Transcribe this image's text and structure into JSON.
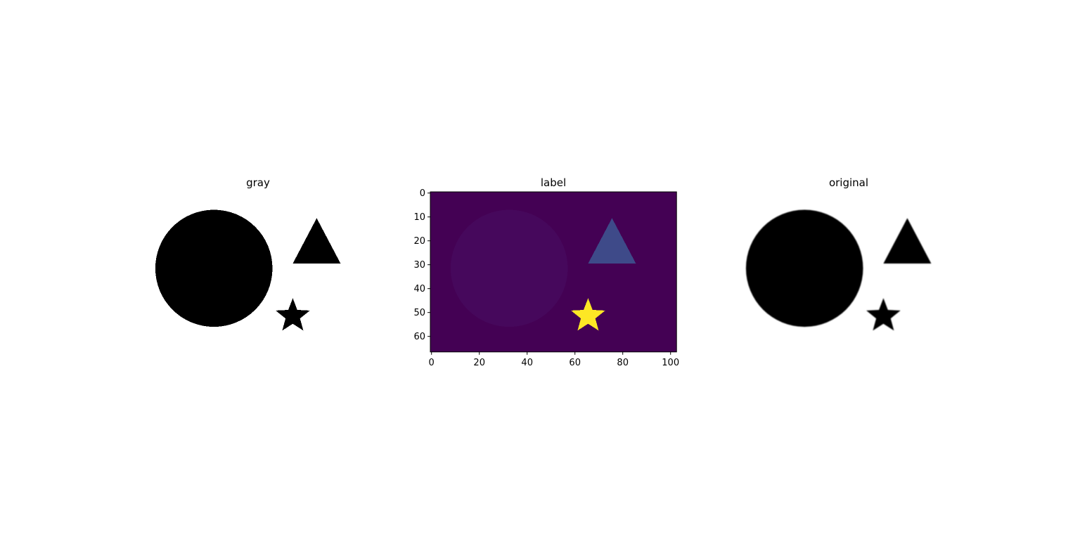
{
  "chart_data": [
    {
      "type": "image",
      "title": "gray",
      "axes_visible": false,
      "colormap": "gray",
      "shapes": [
        {
          "name": "circle",
          "center": [
            33,
            32
          ],
          "radius": 24.5,
          "value": "black"
        },
        {
          "name": "triangle",
          "apex": [
            76,
            11
          ],
          "base_y": 30,
          "base_x": [
            66,
            86
          ],
          "value": "black"
        },
        {
          "name": "star",
          "center": [
            66,
            52
          ],
          "outer_radius": 7.5,
          "inner_radius": 3.2,
          "value": "black"
        }
      ]
    },
    {
      "type": "heatmap",
      "title": "label",
      "axes_visible": true,
      "colormap": "viridis",
      "xlim": [
        -0.5,
        102.5
      ],
      "ylim": [
        66.5,
        -0.5
      ],
      "xticks": [
        "0",
        "20",
        "40",
        "60",
        "80",
        "100"
      ],
      "xtick_values": [
        0,
        20,
        40,
        60,
        80,
        100
      ],
      "yticks": [
        "0",
        "10",
        "20",
        "30",
        "40",
        "50",
        "60"
      ],
      "ytick_values": [
        0,
        10,
        20,
        30,
        40,
        50,
        60
      ],
      "regions": [
        {
          "name": "background",
          "label": 0,
          "color": "#440154"
        },
        {
          "name": "circle",
          "label": 1,
          "color": "#46085c"
        },
        {
          "name": "triangle",
          "label": 2,
          "color": "#3e4a89"
        },
        {
          "name": "star",
          "label": 3,
          "color": "#fde725"
        }
      ]
    },
    {
      "type": "image",
      "title": "original",
      "axes_visible": false,
      "colormap": "gray",
      "shapes": [
        {
          "name": "circle",
          "value": "black"
        },
        {
          "name": "triangle",
          "value": "black"
        },
        {
          "name": "star",
          "value": "black"
        }
      ]
    }
  ],
  "colors": {
    "background": "#ffffff",
    "shape_fill": "#000000",
    "label_background": "#440154",
    "label_circle": "#46085c",
    "label_triangle": "#3e4a89",
    "label_star": "#fde725"
  }
}
